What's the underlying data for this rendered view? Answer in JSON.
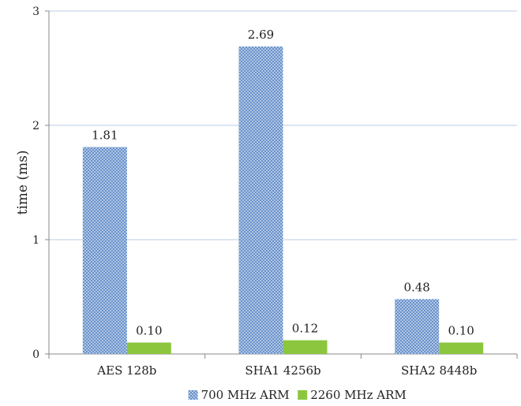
{
  "chart_data": {
    "type": "bar",
    "title": "",
    "xlabel": "",
    "ylabel": "time (ms)",
    "ylim": [
      0,
      3
    ],
    "yticks": [
      0,
      1,
      2,
      3
    ],
    "categories": [
      "AES 128b",
      "SHA1 4256b",
      "SHA2 8448b"
    ],
    "series": [
      {
        "name": "700 MHz ARM",
        "values": [
          1.81,
          2.69,
          0.48
        ],
        "labels": [
          "1.81",
          "2.69",
          "0.48"
        ],
        "color": "#4f81bd",
        "pattern": "crosshatch"
      },
      {
        "name": "2260 MHz ARM",
        "values": [
          0.1,
          0.12,
          0.1
        ],
        "labels": [
          "0.10",
          "0.12",
          "0.10"
        ],
        "color": "#8cc63f",
        "pattern": "solid"
      }
    ],
    "grid": true,
    "legend": "bottom"
  }
}
